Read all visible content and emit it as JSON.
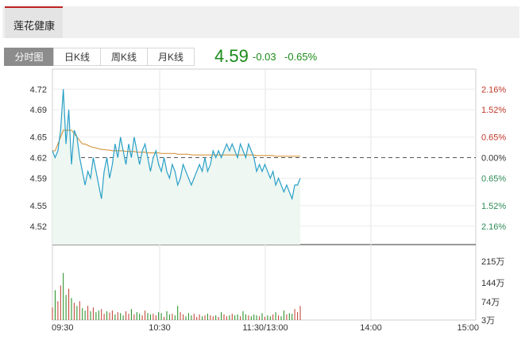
{
  "stock": {
    "name": "莲花健康"
  },
  "tabs": [
    "分时图",
    "日K线",
    "周K线",
    "月K线"
  ],
  "quote": {
    "price": "4.59",
    "change": "-0.03",
    "change_pct": "-0.65%"
  },
  "colors": {
    "up": "#c0392b",
    "down": "#1a8a1a",
    "price_line": "#2aa0c8",
    "avg_line": "#d08a2a",
    "active_tab": "#8c8c8c"
  },
  "chart_data": {
    "type": "line",
    "y_left_ticks": [
      "4.72",
      "4.69",
      "4.65",
      "4.62",
      "4.59",
      "4.55",
      "4.52"
    ],
    "y_right_ticks": [
      "2.16%",
      "1.52%",
      "0.65%",
      "0.00%",
      "0.65%",
      "1.52%",
      "2.16%"
    ],
    "x_ticks": [
      "09:30",
      "10:30",
      "11:30/13:00",
      "14:00",
      "15:00"
    ],
    "prev_close": 4.62,
    "ylim": [
      4.5,
      4.74
    ],
    "price": [
      4.63,
      4.62,
      4.63,
      4.66,
      4.72,
      4.64,
      4.69,
      4.61,
      4.66,
      4.65,
      4.62,
      4.6,
      4.58,
      4.6,
      4.59,
      4.62,
      4.6,
      4.58,
      4.56,
      4.6,
      4.62,
      4.59,
      4.61,
      4.64,
      4.62,
      4.65,
      4.63,
      4.61,
      4.64,
      4.62,
      4.65,
      4.63,
      4.61,
      4.63,
      4.64,
      4.62,
      4.6,
      4.62,
      4.63,
      4.61,
      4.6,
      4.62,
      4.6,
      4.59,
      4.61,
      4.6,
      4.58,
      4.59,
      4.61,
      4.6,
      4.59,
      4.58,
      4.59,
      4.6,
      4.61,
      4.6,
      4.62,
      4.6,
      4.61,
      4.63,
      4.62,
      4.63,
      4.62,
      4.63,
      4.64,
      4.63,
      4.64,
      4.63,
      4.62,
      4.64,
      4.63,
      4.62,
      4.64,
      4.63,
      4.62,
      4.6,
      4.61,
      4.6,
      4.61,
      4.6,
      4.59,
      4.6,
      4.58,
      4.59,
      4.58,
      4.57,
      4.58,
      4.57,
      4.56,
      4.58,
      4.58,
      4.59
    ],
    "avg_price": [
      4.63,
      4.63,
      4.64,
      4.65,
      4.66,
      4.66,
      4.66,
      4.66,
      4.655,
      4.65,
      4.645,
      4.64,
      4.64,
      4.638,
      4.636,
      4.635,
      4.634,
      4.633,
      4.632,
      4.632,
      4.631,
      4.631,
      4.63,
      4.63,
      4.63,
      4.63,
      4.63,
      4.629,
      4.629,
      4.629,
      4.629,
      4.628,
      4.628,
      4.628,
      4.628,
      4.627,
      4.627,
      4.627,
      4.627,
      4.627,
      4.626,
      4.626,
      4.626,
      4.626,
      4.626,
      4.626,
      4.625,
      4.625,
      4.625,
      4.625,
      4.625,
      4.624,
      4.624,
      4.624,
      4.624,
      4.624,
      4.624,
      4.624,
      4.624,
      4.624,
      4.624,
      4.624,
      4.624,
      4.624,
      4.624,
      4.624,
      4.624,
      4.624,
      4.624,
      4.624,
      4.624,
      4.624,
      4.624,
      4.624,
      4.624,
      4.623,
      4.623,
      4.623,
      4.623,
      4.623,
      4.623,
      4.623,
      4.622,
      4.622,
      4.622,
      4.622,
      4.622,
      4.622,
      4.622,
      4.622,
      4.622,
      4.622
    ],
    "volume_ticks": [
      "215万",
      "144万",
      "74万",
      "3万"
    ],
    "volume_max": 215,
    "volume": [
      40,
      95,
      60,
      110,
      150,
      80,
      100,
      70,
      55,
      45,
      60,
      38,
      30,
      45,
      28,
      40,
      25,
      30,
      35,
      20,
      28,
      24,
      30,
      18,
      25,
      22,
      15,
      28,
      20,
      35,
      18,
      25,
      20,
      15,
      30,
      22,
      18,
      20,
      15,
      25,
      22,
      10,
      28,
      18,
      20,
      15,
      45,
      25,
      18,
      12,
      22,
      15,
      20,
      10,
      18,
      12,
      15,
      20,
      15,
      12,
      15,
      10,
      25,
      18,
      12,
      15,
      20,
      15,
      18,
      12,
      28,
      18,
      15,
      12,
      18,
      15,
      12,
      22,
      10,
      15,
      12,
      18,
      25,
      15,
      12,
      30,
      18,
      22,
      20,
      35,
      25,
      45
    ],
    "volume_dir": [
      "u",
      "d",
      "u",
      "u",
      "d",
      "d",
      "u",
      "d",
      "u",
      "d",
      "u",
      "d",
      "d",
      "u",
      "d",
      "u",
      "d",
      "d",
      "u",
      "u",
      "d",
      "u",
      "u",
      "d",
      "u",
      "d",
      "d",
      "u",
      "u",
      "d",
      "u",
      "d",
      "d",
      "u",
      "u",
      "d",
      "d",
      "u",
      "u",
      "d",
      "d",
      "u",
      "d",
      "d",
      "u",
      "d",
      "d",
      "u",
      "u",
      "d",
      "d",
      "d",
      "u",
      "u",
      "u",
      "d",
      "u",
      "d",
      "u",
      "u",
      "d",
      "u",
      "d",
      "u",
      "u",
      "d",
      "u",
      "d",
      "d",
      "u",
      "d",
      "d",
      "u",
      "d",
      "d",
      "d",
      "u",
      "d",
      "u",
      "d",
      "d",
      "u",
      "d",
      "u",
      "d",
      "d",
      "u",
      "d",
      "d",
      "u",
      "u",
      "u"
    ]
  }
}
